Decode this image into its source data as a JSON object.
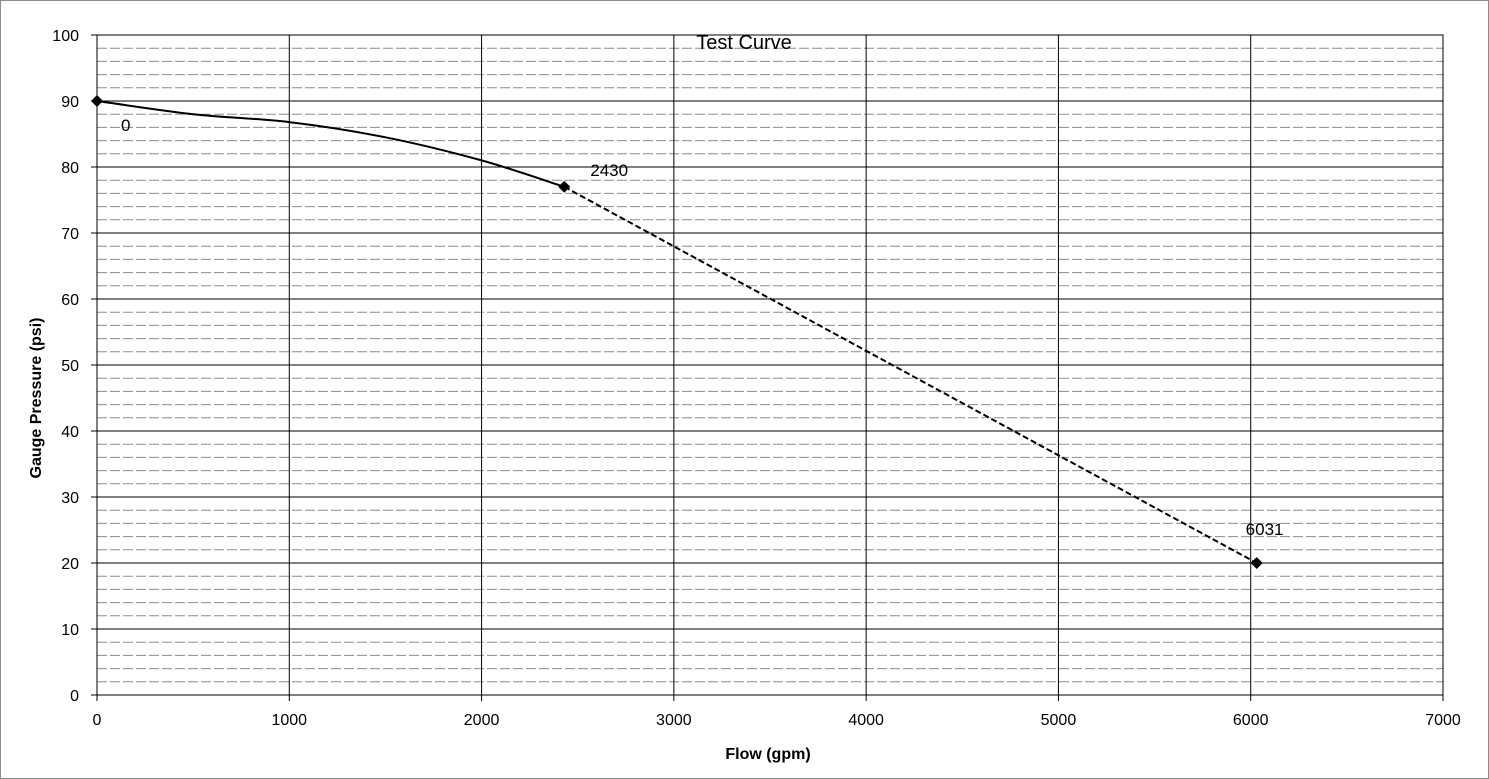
{
  "chart_data": {
    "type": "line",
    "title": "Test Curve",
    "xlabel": "Flow (gpm)",
    "ylabel": "Gauge Pressure (psi)",
    "xlim": [
      0,
      7000
    ],
    "ylim": [
      0,
      100
    ],
    "x_ticks": [
      0,
      1000,
      2000,
      3000,
      4000,
      5000,
      6000,
      7000
    ],
    "y_ticks": [
      0,
      10,
      20,
      30,
      40,
      50,
      60,
      70,
      80,
      90,
      100
    ],
    "x_tick_labels": [
      "0",
      "1000",
      "2000",
      "3000",
      "4000",
      "5000",
      "6000",
      "7000"
    ],
    "y_tick_labels": [
      "0",
      "10",
      "20",
      "30",
      "40",
      "50",
      "60",
      "70",
      "80",
      "90",
      "100"
    ],
    "minor_y_step": 2,
    "grid": true,
    "series": [
      {
        "style": "solid",
        "x": [
          0,
          500,
          1000,
          1500,
          2000,
          2430
        ],
        "y": [
          90,
          88,
          86.8,
          84.5,
          81,
          77
        ]
      },
      {
        "style": "dashed",
        "x": [
          2430,
          6031
        ],
        "y": [
          77,
          20
        ]
      }
    ],
    "points": [
      {
        "x": 0,
        "y": 90,
        "label": "0"
      },
      {
        "x": 2430,
        "y": 77,
        "label": "2430"
      },
      {
        "x": 6031,
        "y": 20,
        "label": "6031"
      }
    ],
    "colors": {
      "line": "#000000",
      "major_grid": "#000000",
      "minor_grid": "#8c8c8c",
      "frame": "#8c8c8c"
    }
  }
}
